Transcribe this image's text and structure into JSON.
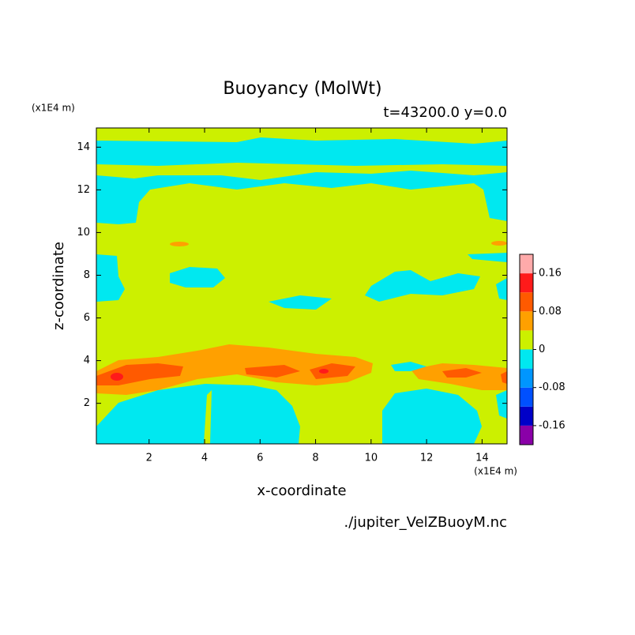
{
  "chart_data": {
    "type": "contour",
    "title": "Buoyancy (MolWt)",
    "subtitle": "t=43200.0 y=0.0",
    "x_label": "x-coordinate",
    "y_label": "z-coordinate",
    "x_unit": "(x1E4 m)",
    "y_unit": "(x1E4 m)",
    "source": "./jupiter_VelZBuoyM.nc",
    "xlim": [
      0.1,
      14.9
    ],
    "ylim": [
      0.1,
      14.9
    ],
    "xticks": [
      2,
      4,
      6,
      8,
      10,
      12,
      14
    ],
    "yticks": [
      2,
      4,
      6,
      8,
      10,
      12,
      14
    ],
    "colorbar": {
      "levels": [
        -0.2,
        -0.16,
        -0.12,
        -0.08,
        -0.04,
        0,
        0.04,
        0.08,
        0.12,
        0.16,
        0.2
      ],
      "colors": [
        "#8a00a8",
        "#0000c8",
        "#0050ff",
        "#0096ff",
        "#00e8f0",
        "#ccf000",
        "#ffa000",
        "#ff5a00",
        "#ff1a1a",
        "#ffaaaa"
      ],
      "ticks": [
        -0.16,
        -0.08,
        0,
        0.08,
        0.16
      ]
    }
  }
}
